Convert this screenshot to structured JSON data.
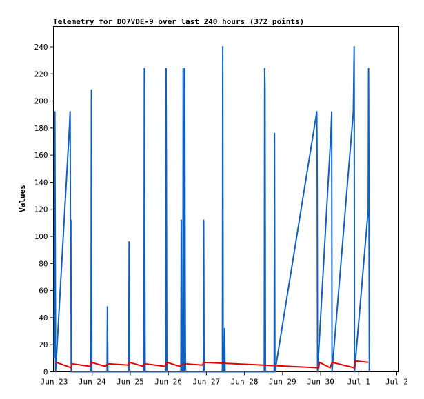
{
  "chart_data": {
    "type": "line",
    "title": "Telemetry for DO7VDE-9 over last 240 hours (372 points)",
    "xlabel": "",
    "ylabel": "Values",
    "x_ticks": [
      "Jun 23",
      "Jun 24",
      "Jun 25",
      "Jun 26",
      "Jun 27",
      "Jun 28",
      "Jun 29",
      "Jun 30",
      "Jul 1",
      "Jul 2"
    ],
    "x_range_days": [
      0,
      9
    ],
    "y_ticks": [
      0,
      20,
      40,
      60,
      80,
      100,
      120,
      140,
      160,
      180,
      200,
      220,
      240
    ],
    "ylim": [
      0,
      255
    ],
    "grid": false,
    "legend": "none",
    "colors": {
      "blue": "#1060c0",
      "red": "#e00000",
      "black": "#000000"
    },
    "series": [
      {
        "color": "blue",
        "points": [
          [
            0.0,
            10
          ],
          [
            0.02,
            192
          ],
          [
            0.04,
            0
          ],
          [
            0.4,
            180
          ],
          [
            0.42,
            192
          ],
          [
            0.43,
            96
          ],
          [
            0.44,
            112
          ],
          [
            0.45,
            0
          ],
          [
            0.96,
            0
          ],
          [
            0.97,
            48
          ],
          [
            0.98,
            208
          ],
          [
            0.99,
            0
          ],
          [
            1.39,
            0
          ],
          [
            1.4,
            48
          ],
          [
            1.41,
            0
          ],
          [
            1.96,
            0
          ],
          [
            1.97,
            96
          ],
          [
            1.98,
            0
          ],
          [
            2.36,
            0
          ],
          [
            2.37,
            224
          ],
          [
            2.38,
            112
          ],
          [
            2.39,
            0
          ],
          [
            2.93,
            0
          ],
          [
            2.94,
            224
          ],
          [
            2.95,
            152
          ],
          [
            2.96,
            0
          ],
          [
            3.33,
            0
          ],
          [
            3.34,
            112
          ],
          [
            3.35,
            0
          ],
          [
            3.38,
            0
          ],
          [
            3.39,
            224
          ],
          [
            3.4,
            0
          ],
          [
            3.42,
            0
          ],
          [
            3.43,
            224
          ],
          [
            3.44,
            80
          ],
          [
            3.45,
            0
          ],
          [
            3.92,
            0
          ],
          [
            3.93,
            112
          ],
          [
            3.94,
            0
          ],
          [
            4.42,
            0
          ],
          [
            4.43,
            240
          ],
          [
            4.44,
            0
          ],
          [
            4.47,
            0
          ],
          [
            4.48,
            32
          ],
          [
            4.49,
            0
          ],
          [
            5.52,
            0
          ],
          [
            5.53,
            224
          ],
          [
            5.54,
            208
          ],
          [
            5.55,
            0
          ],
          [
            5.78,
            0
          ],
          [
            5.79,
            176
          ],
          [
            5.8,
            0
          ],
          [
            6.9,
            192
          ],
          [
            6.91,
            144
          ],
          [
            6.92,
            0
          ],
          [
            7.27,
            176
          ],
          [
            7.29,
            192
          ],
          [
            7.3,
            0
          ],
          [
            7.86,
            192
          ],
          [
            7.88,
            240
          ],
          [
            7.89,
            0
          ],
          [
            8.25,
            120
          ],
          [
            8.26,
            224
          ],
          [
            8.27,
            128
          ],
          [
            8.28,
            0
          ]
        ]
      },
      {
        "color": "red",
        "points": [
          [
            0.05,
            7
          ],
          [
            0.45,
            3
          ],
          [
            0.46,
            6
          ],
          [
            0.95,
            4
          ],
          [
            0.97,
            7
          ],
          [
            1.35,
            4
          ],
          [
            1.4,
            6
          ],
          [
            1.95,
            5
          ],
          [
            1.97,
            7
          ],
          [
            2.35,
            4
          ],
          [
            2.37,
            6
          ],
          [
            2.92,
            4
          ],
          [
            2.96,
            7
          ],
          [
            3.3,
            4
          ],
          [
            3.4,
            6
          ],
          [
            3.9,
            5
          ],
          [
            3.92,
            7
          ],
          [
            5.5,
            5
          ],
          [
            6.95,
            3
          ],
          [
            6.97,
            7
          ],
          [
            7.25,
            3
          ],
          [
            7.3,
            7
          ],
          [
            7.88,
            3
          ],
          [
            7.9,
            8
          ],
          [
            8.25,
            7
          ]
        ]
      },
      {
        "color": "black",
        "points": [
          [
            0.0,
            0.5
          ],
          [
            9.0,
            0.5
          ]
        ]
      }
    ]
  }
}
